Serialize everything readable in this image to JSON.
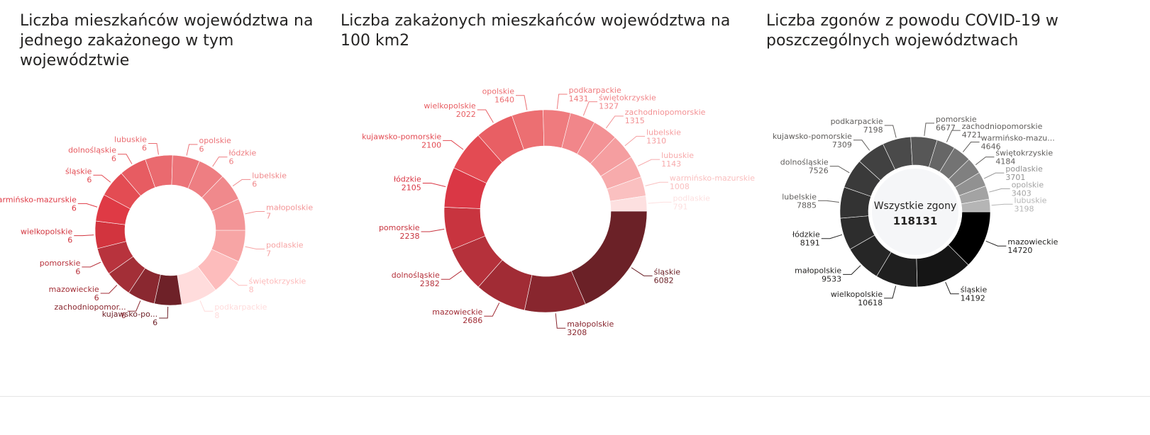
{
  "charts": [
    {
      "title": "Liczba mieszkańców województwa na jednego zakażonego w tym województwie",
      "chart_data": {
        "type": "pie",
        "variant": "donut",
        "segments": [
          {
            "label": "podlaskie",
            "value": 7,
            "color": "#f7a5a5"
          },
          {
            "label": "świętokrzyskie",
            "value": 8,
            "color": "#fdbcbc"
          },
          {
            "label": "podkarpackie",
            "value": 8,
            "color": "#ffdcdc"
          },
          {
            "label": "kujawsko-po...",
            "value": 6,
            "color": "#6e2128"
          },
          {
            "label": "zachodniopomor...",
            "value": 6,
            "color": "#8a2830"
          },
          {
            "label": "mazowieckie",
            "value": 6,
            "color": "#a32f37"
          },
          {
            "label": "pomorskie",
            "value": 6,
            "color": "#b8333d"
          },
          {
            "label": "wielkopolskie",
            "value": 6,
            "color": "#d2343e"
          },
          {
            "label": "warmińsko-mazurskie",
            "value": 6,
            "color": "#df3a45"
          },
          {
            "label": "śląskie",
            "value": 6,
            "color": "#e34c53"
          },
          {
            "label": "dolnośląskie",
            "value": 6,
            "color": "#e75c62"
          },
          {
            "label": "lubuskie",
            "value": 6,
            "color": "#ea6a6f"
          },
          {
            "label": "opolskie",
            "value": 6,
            "color": "#ec7479"
          },
          {
            "label": "łódzkie",
            "value": 6,
            "color": "#ee7e82"
          },
          {
            "label": "lubelskie",
            "value": 6,
            "color": "#f0898c"
          },
          {
            "label": "małopolskie",
            "value": 7,
            "color": "#f39597"
          }
        ]
      }
    },
    {
      "title": "Liczba zakażonych mieszkańców województwa na 100 km2",
      "chart_data": {
        "type": "pie",
        "variant": "donut",
        "segments": [
          {
            "label": "śląskie",
            "value": 6082,
            "color": "#6b2127"
          },
          {
            "label": "małopolskie",
            "value": 3208,
            "color": "#88262e"
          },
          {
            "label": "mazowieckie",
            "value": 2686,
            "color": "#a12c35"
          },
          {
            "label": "dolnośląskie",
            "value": 2382,
            "color": "#b5313b"
          },
          {
            "label": "pomorskie",
            "value": 2238,
            "color": "#c8343f"
          },
          {
            "label": "łódzkie",
            "value": 2105,
            "color": "#da3745"
          },
          {
            "label": "kujawsko-pomorskie",
            "value": 2100,
            "color": "#e34b53"
          },
          {
            "label": "wielkopolskie",
            "value": 2022,
            "color": "#e85f64"
          },
          {
            "label": "opolskie",
            "value": 1640,
            "color": "#ec6f72"
          },
          {
            "label": "podkarpackie",
            "value": 1431,
            "color": "#ef7b7e"
          },
          {
            "label": "świętokrzyskie",
            "value": 1327,
            "color": "#f1868a"
          },
          {
            "label": "zachodniopomorskie",
            "value": 1315,
            "color": "#f39295"
          },
          {
            "label": "lubelskie",
            "value": 1310,
            "color": "#f59ea0"
          },
          {
            "label": "lubuskie",
            "value": 1143,
            "color": "#f7abac"
          },
          {
            "label": "warmińsko-mazurskie",
            "value": 1008,
            "color": "#fac0c0"
          },
          {
            "label": "podlaskie",
            "value": 791,
            "color": "#fde0e0"
          }
        ]
      }
    },
    {
      "title": "Liczba zgonów z powodu COVID-19 w poszczególnych województwach",
      "center_label": "Wszystkie zgony",
      "center_value": "118131",
      "chart_data": {
        "type": "pie",
        "variant": "donut",
        "segments": [
          {
            "label": "mazowieckie",
            "value": 14720,
            "color": "#000000"
          },
          {
            "label": "śląskie",
            "value": 14192,
            "color": "#151515"
          },
          {
            "label": "wielkopolskie",
            "value": 10618,
            "color": "#1f1f1f"
          },
          {
            "label": "małopolskie",
            "value": 9533,
            "color": "#262626"
          },
          {
            "label": "łódzkie",
            "value": 8191,
            "color": "#2d2d2d"
          },
          {
            "label": "lubelskie",
            "value": 7885,
            "color": "#333333"
          },
          {
            "label": "dolnośląskie",
            "value": 7526,
            "color": "#3a3a3a"
          },
          {
            "label": "kujawsko-pomorskie",
            "value": 7309,
            "color": "#414141"
          },
          {
            "label": "podkarpackie",
            "value": 7198,
            "color": "#4a4a4a"
          },
          {
            "label": "pomorskie",
            "value": 6677,
            "color": "#575757"
          },
          {
            "label": "zachodniopomorskie",
            "value": 4721,
            "color": "#666666"
          },
          {
            "label": "warmińsko-mazu...",
            "value": 4646,
            "color": "#737373"
          },
          {
            "label": "świętokrzyskie",
            "value": 4184,
            "color": "#808080"
          },
          {
            "label": "podlaskie",
            "value": 3701,
            "color": "#919191"
          },
          {
            "label": "opolskie",
            "value": 3403,
            "color": "#a3a3a3"
          },
          {
            "label": "lubuskie",
            "value": 3198,
            "color": "#b5b5b5"
          }
        ]
      }
    }
  ]
}
